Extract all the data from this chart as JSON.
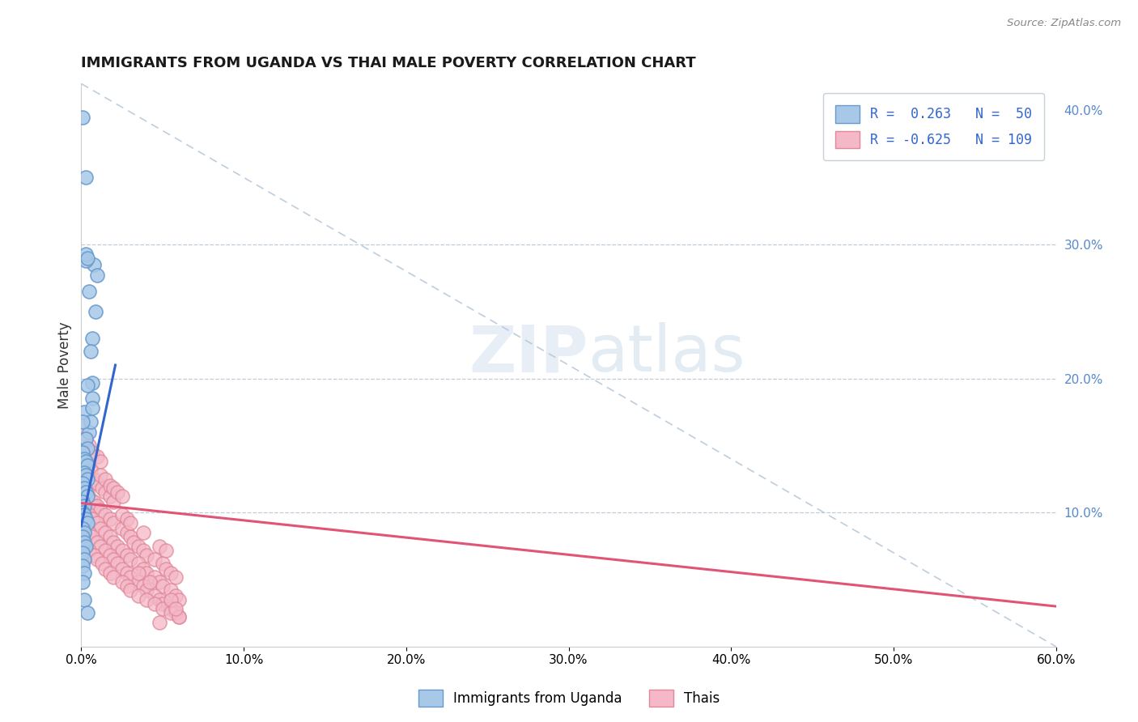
{
  "title": "IMMIGRANTS FROM UGANDA VS THAI MALE POVERTY CORRELATION CHART",
  "source": "Source: ZipAtlas.com",
  "ylabel": "Male Poverty",
  "xlim": [
    0.0,
    0.6
  ],
  "ylim": [
    0.0,
    0.42
  ],
  "uganda_color": "#a8c8e8",
  "uganda_edge": "#6699cc",
  "thai_color": "#f4b8c8",
  "thai_edge": "#e08898",
  "uganda_line_color": "#3366cc",
  "thai_line_color": "#e05575",
  "diagonal_color": "#b8c8d8",
  "background_color": "#ffffff",
  "uganda_scatter": [
    [
      0.001,
      0.395
    ],
    [
      0.003,
      0.35
    ],
    [
      0.007,
      0.23
    ],
    [
      0.008,
      0.285
    ],
    [
      0.01,
      0.277
    ],
    [
      0.005,
      0.265
    ],
    [
      0.009,
      0.25
    ],
    [
      0.003,
      0.288
    ],
    [
      0.006,
      0.22
    ],
    [
      0.003,
      0.293
    ],
    [
      0.004,
      0.29
    ],
    [
      0.007,
      0.197
    ],
    [
      0.002,
      0.175
    ],
    [
      0.007,
      0.185
    ],
    [
      0.004,
      0.195
    ],
    [
      0.005,
      0.16
    ],
    [
      0.006,
      0.168
    ],
    [
      0.007,
      0.178
    ],
    [
      0.001,
      0.168
    ],
    [
      0.003,
      0.155
    ],
    [
      0.004,
      0.148
    ],
    [
      0.001,
      0.145
    ],
    [
      0.002,
      0.14
    ],
    [
      0.003,
      0.138
    ],
    [
      0.004,
      0.135
    ],
    [
      0.002,
      0.13
    ],
    [
      0.003,
      0.128
    ],
    [
      0.004,
      0.125
    ],
    [
      0.001,
      0.122
    ],
    [
      0.002,
      0.118
    ],
    [
      0.003,
      0.115
    ],
    [
      0.004,
      0.112
    ],
    [
      0.001,
      0.108
    ],
    [
      0.002,
      0.105
    ],
    [
      0.001,
      0.1
    ],
    [
      0.002,
      0.098
    ],
    [
      0.003,
      0.095
    ],
    [
      0.004,
      0.092
    ],
    [
      0.001,
      0.088
    ],
    [
      0.002,
      0.085
    ],
    [
      0.001,
      0.082
    ],
    [
      0.002,
      0.078
    ],
    [
      0.003,
      0.075
    ],
    [
      0.001,
      0.07
    ],
    [
      0.002,
      0.065
    ],
    [
      0.001,
      0.06
    ],
    [
      0.002,
      0.055
    ],
    [
      0.001,
      0.048
    ],
    [
      0.002,
      0.035
    ],
    [
      0.004,
      0.025
    ]
  ],
  "thai_scatter": [
    [
      0.001,
      0.165
    ],
    [
      0.003,
      0.155
    ],
    [
      0.005,
      0.15
    ],
    [
      0.007,
      0.145
    ],
    [
      0.01,
      0.142
    ],
    [
      0.012,
      0.138
    ],
    [
      0.002,
      0.132
    ],
    [
      0.004,
      0.128
    ],
    [
      0.008,
      0.125
    ],
    [
      0.01,
      0.122
    ],
    [
      0.013,
      0.118
    ],
    [
      0.015,
      0.115
    ],
    [
      0.018,
      0.112
    ],
    [
      0.02,
      0.108
    ],
    [
      0.008,
      0.105
    ],
    [
      0.006,
      0.132
    ],
    [
      0.012,
      0.128
    ],
    [
      0.015,
      0.125
    ],
    [
      0.018,
      0.12
    ],
    [
      0.02,
      0.118
    ],
    [
      0.022,
      0.115
    ],
    [
      0.025,
      0.112
    ],
    [
      0.002,
      0.118
    ],
    [
      0.004,
      0.115
    ],
    [
      0.006,
      0.11
    ],
    [
      0.008,
      0.108
    ],
    [
      0.01,
      0.105
    ],
    [
      0.012,
      0.102
    ],
    [
      0.015,
      0.098
    ],
    [
      0.018,
      0.095
    ],
    [
      0.02,
      0.092
    ],
    [
      0.025,
      0.088
    ],
    [
      0.028,
      0.085
    ],
    [
      0.03,
      0.082
    ],
    [
      0.032,
      0.078
    ],
    [
      0.035,
      0.075
    ],
    [
      0.038,
      0.072
    ],
    [
      0.04,
      0.068
    ],
    [
      0.045,
      0.065
    ],
    [
      0.05,
      0.062
    ],
    [
      0.052,
      0.058
    ],
    [
      0.055,
      0.055
    ],
    [
      0.058,
      0.052
    ],
    [
      0.002,
      0.102
    ],
    [
      0.005,
      0.098
    ],
    [
      0.007,
      0.095
    ],
    [
      0.01,
      0.092
    ],
    [
      0.012,
      0.088
    ],
    [
      0.015,
      0.085
    ],
    [
      0.018,
      0.082
    ],
    [
      0.02,
      0.078
    ],
    [
      0.022,
      0.075
    ],
    [
      0.025,
      0.072
    ],
    [
      0.028,
      0.068
    ],
    [
      0.03,
      0.065
    ],
    [
      0.035,
      0.062
    ],
    [
      0.038,
      0.058
    ],
    [
      0.04,
      0.055
    ],
    [
      0.045,
      0.052
    ],
    [
      0.048,
      0.048
    ],
    [
      0.05,
      0.045
    ],
    [
      0.055,
      0.042
    ],
    [
      0.058,
      0.038
    ],
    [
      0.06,
      0.035
    ],
    [
      0.002,
      0.088
    ],
    [
      0.005,
      0.085
    ],
    [
      0.007,
      0.082
    ],
    [
      0.01,
      0.078
    ],
    [
      0.012,
      0.075
    ],
    [
      0.015,
      0.072
    ],
    [
      0.018,
      0.068
    ],
    [
      0.02,
      0.065
    ],
    [
      0.022,
      0.062
    ],
    [
      0.025,
      0.058
    ],
    [
      0.028,
      0.055
    ],
    [
      0.03,
      0.052
    ],
    [
      0.035,
      0.048
    ],
    [
      0.038,
      0.045
    ],
    [
      0.04,
      0.042
    ],
    [
      0.045,
      0.038
    ],
    [
      0.048,
      0.035
    ],
    [
      0.05,
      0.032
    ],
    [
      0.055,
      0.028
    ],
    [
      0.058,
      0.025
    ],
    [
      0.06,
      0.022
    ],
    [
      0.002,
      0.075
    ],
    [
      0.005,
      0.072
    ],
    [
      0.008,
      0.068
    ],
    [
      0.01,
      0.065
    ],
    [
      0.013,
      0.062
    ],
    [
      0.015,
      0.058
    ],
    [
      0.018,
      0.055
    ],
    [
      0.02,
      0.052
    ],
    [
      0.025,
      0.048
    ],
    [
      0.028,
      0.045
    ],
    [
      0.03,
      0.042
    ],
    [
      0.035,
      0.038
    ],
    [
      0.04,
      0.035
    ],
    [
      0.045,
      0.032
    ],
    [
      0.05,
      0.028
    ],
    [
      0.055,
      0.025
    ],
    [
      0.06,
      0.022
    ],
    [
      0.025,
      0.098
    ],
    [
      0.028,
      0.095
    ],
    [
      0.03,
      0.092
    ],
    [
      0.038,
      0.085
    ],
    [
      0.048,
      0.075
    ],
    [
      0.052,
      0.072
    ],
    [
      0.035,
      0.055
    ],
    [
      0.042,
      0.048
    ],
    [
      0.055,
      0.035
    ],
    [
      0.058,
      0.028
    ],
    [
      0.048,
      0.018
    ]
  ]
}
